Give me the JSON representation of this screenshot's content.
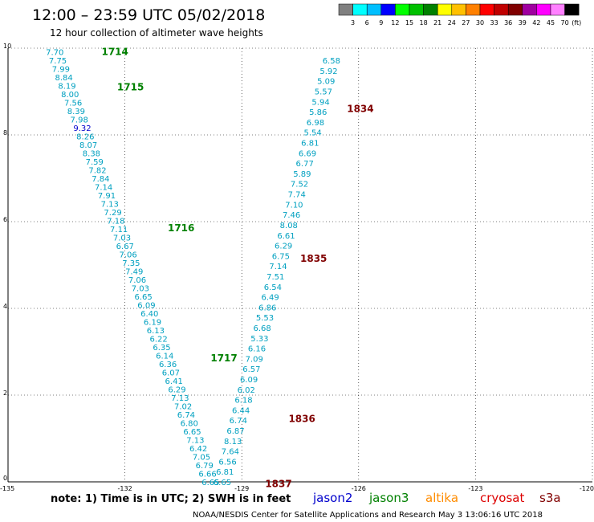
{
  "header": {
    "title": "12:00 – 23:59 UTC 05/02/2018",
    "subtitle": "12 hour collection of altimeter wave heights"
  },
  "colorbar": {
    "unit": "(ft)",
    "colors": [
      "#808080",
      "#00ffff",
      "#00bfff",
      "#0000ff",
      "#00ff00",
      "#00c000",
      "#008000",
      "#ffff00",
      "#ffc000",
      "#ff8000",
      "#ff0000",
      "#c00000",
      "#800000",
      "#a000a0",
      "#ff00ff",
      "#ff80ff",
      "#000000"
    ],
    "labels": [
      "3",
      "6",
      "9",
      "12",
      "15",
      "18",
      "21",
      "24",
      "27",
      "30",
      "33",
      "36",
      "39",
      "42",
      "45",
      "70"
    ]
  },
  "note": "note: 1) Time is in UTC; 2) SWH is in feet",
  "satellites": [
    {
      "name": "jason2",
      "color": "#0000cc"
    },
    {
      "name": "jason3",
      "color": "#008000"
    },
    {
      "name": "altika",
      "color": "#ff8c00"
    },
    {
      "name": "cryosat",
      "color": "#dd0000"
    },
    {
      "name": "s3a",
      "color": "#800000"
    }
  ],
  "footer": "NOAA/NESDIS Center for Satellite Applications and Research     May  3 13:06:16 UTC 2018",
  "chart_data": {
    "type": "scatter",
    "xlim": [
      -135,
      -120
    ],
    "ylim": [
      0,
      10
    ],
    "x_ticks": [
      "-135",
      "-132",
      "-129",
      "-126",
      "-123",
      "-120"
    ],
    "y_ticks": [
      "0",
      "2",
      "4",
      "6",
      "8",
      "10"
    ],
    "grid": true,
    "tracks": [
      {
        "satellite": "jason3",
        "color": "#008000",
        "value_color": "#00a0c0",
        "start": [
          -133.8,
          9.92
        ],
        "end": [
          -129.8,
          0.0
        ],
        "values": [
          "7.70",
          "7.75",
          "7.99",
          "8.84",
          "8.19",
          "8.00",
          "7.56",
          "8.39",
          "7.98",
          "9.32",
          "8.26",
          "8.07",
          "8.38",
          "7.59",
          "7.82",
          "7.84",
          "7.14",
          "7.91",
          "7.13",
          "7.29",
          "7.18",
          "7.11",
          "7.03",
          "6.67",
          "7.06",
          "7.35",
          "7.49",
          "7.06",
          "7.03",
          "6.65",
          "6.09",
          "6.40",
          "6.19",
          "6.13",
          "6.22",
          "6.35",
          "6.14",
          "6.36",
          "6.07",
          "6.41",
          "6.29",
          "7.13",
          "7.02",
          "6.74",
          "6.80",
          "6.65",
          "7.13",
          "6.42",
          "7.05",
          "6.79",
          "6.66",
          "6.65"
        ],
        "highlight_index": 9,
        "highlight_color": "#0000cc",
        "times": [
          {
            "label": "1714",
            "x": -132.6,
            "y": 9.92
          },
          {
            "label": "1715",
            "x": -132.2,
            "y": 9.1
          },
          {
            "label": "1716",
            "x": -130.9,
            "y": 5.85
          },
          {
            "label": "1717",
            "x": -129.8,
            "y": 2.85
          }
        ]
      },
      {
        "satellite": "s3a",
        "color": "#800000",
        "value_color": "#00a0c0",
        "start": [
          -126.7,
          9.72
        ],
        "end": [
          -129.5,
          0.0
        ],
        "values": [
          "6.58",
          "5.92",
          "5.09",
          "5.57",
          "5.94",
          "5.86",
          "6.98",
          "5.54",
          "6.81",
          "6.69",
          "6.77",
          "5.89",
          "7.52",
          "7.74",
          "7.10",
          "7.46",
          "8.08",
          "6.61",
          "6.29",
          "6.75",
          "7.14",
          "7.51",
          "6.54",
          "6.49",
          "6.86",
          "5.53",
          "6.68",
          "5.33",
          "6.16",
          "7.09",
          "6.57",
          "6.09",
          "6.02",
          "6.18",
          "6.44",
          "6.74",
          "6.87",
          "8.13",
          "7.64",
          "6.56",
          "6.81",
          "6.65"
        ],
        "times": [
          {
            "label": "1834",
            "x": -126.3,
            "y": 8.6
          },
          {
            "label": "1835",
            "x": -127.5,
            "y": 5.15
          },
          {
            "label": "1836",
            "x": -127.8,
            "y": 1.45
          },
          {
            "label": "1837",
            "x": -128.4,
            "y": -0.05
          }
        ]
      }
    ]
  }
}
